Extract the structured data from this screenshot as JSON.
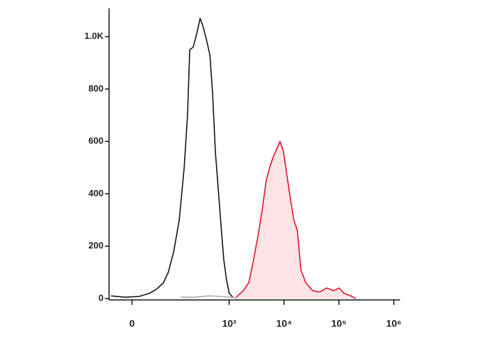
{
  "chart_data": {
    "type": "line",
    "xscale": "asinh",
    "xlim": [
      -38,
      1270000
    ],
    "xticks": [
      0,
      {
        "value": 1000,
        "label": "10³"
      },
      {
        "value": 10000,
        "label": "10⁴"
      },
      {
        "value": 100000,
        "label": "10⁵"
      },
      {
        "value": 1000000,
        "label": "10⁶"
      }
    ],
    "ylim": [
      0,
      1100
    ],
    "yticks": [
      0,
      200,
      400,
      600,
      800,
      {
        "value": 1000,
        "label": "1.0K"
      }
    ],
    "series": [
      {
        "color": "#111111",
        "x": [
          -34,
          -10,
          10,
          27,
          41,
          59,
          74,
          95,
          121,
          150,
          173,
          190,
          220,
          255,
          295,
          332,
          384,
          445,
          500,
          561,
          632,
          711,
          796,
          897,
          1007,
          1166
        ],
        "values": [
          10,
          5,
          8,
          20,
          35,
          60,
          100,
          180,
          300,
          500,
          700,
          950,
          960,
          1010,
          1070,
          1040,
          990,
          930,
          780,
          560,
          420,
          280,
          150,
          70,
          20,
          5
        ]
      },
      {
        "color": "#aaaaaa",
        "x": [
          129,
          233,
          419,
          752,
          1347
        ],
        "values": [
          5,
          5,
          10,
          8,
          3
        ]
      },
      {
        "color": "#e0102a",
        "fill": "#fbe3e6",
        "x": [
          1347,
          1802,
          2278,
          2795,
          3427,
          4080,
          4726,
          5467,
          6320,
          7310,
          8459,
          9785,
          11315,
          13090,
          15140,
          17510,
          20260,
          24920,
          33320,
          44610,
          59670,
          79820,
          100800,
          123700,
          165400,
          203000
        ],
        "values": [
          5,
          30,
          60,
          150,
          250,
          350,
          450,
          500,
          540,
          570,
          600,
          560,
          470,
          380,
          300,
          260,
          110,
          60,
          30,
          25,
          40,
          30,
          40,
          20,
          10,
          0
        ]
      }
    ]
  }
}
